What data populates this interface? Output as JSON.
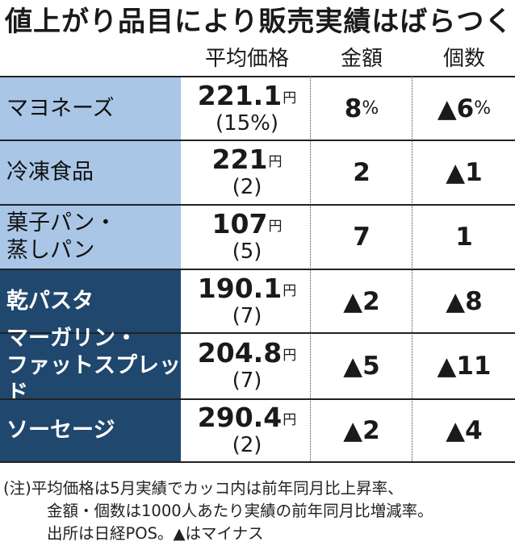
{
  "title": "値上がり品目により販売実績はばらつく",
  "headers": {
    "price": "平均価格",
    "amount": "金額",
    "count": "個数"
  },
  "rows": [
    {
      "name_lines": [
        "マヨネーズ"
      ],
      "price": "221.1",
      "unit": "円",
      "price_change": "(15%)",
      "amount": "8",
      "amount_unit": "%",
      "count": "▲6",
      "count_unit": "%",
      "style": "light"
    },
    {
      "name_lines": [
        "冷凍食品"
      ],
      "price": "221",
      "unit": "円",
      "price_change": "(2)",
      "amount": "2",
      "amount_unit": "",
      "count": "▲1",
      "count_unit": "",
      "style": "light"
    },
    {
      "name_lines": [
        "菓子パン・",
        "蒸しパン"
      ],
      "price": "107",
      "unit": "円",
      "price_change": "(5)",
      "amount": "7",
      "amount_unit": "",
      "count": "1",
      "count_unit": "",
      "style": "light"
    },
    {
      "name_lines": [
        "乾パスタ"
      ],
      "price": "190.1",
      "unit": "円",
      "price_change": "(7)",
      "amount": "▲2",
      "amount_unit": "",
      "count": "▲8",
      "count_unit": "",
      "style": "dark"
    },
    {
      "name_lines": [
        "マーガリン・",
        "ファットスプレッド"
      ],
      "price": "204.8",
      "unit": "円",
      "price_change": "(7)",
      "amount": "▲5",
      "amount_unit": "",
      "count": "▲11",
      "count_unit": "",
      "style": "dark"
    },
    {
      "name_lines": [
        "ソーセージ"
      ],
      "price": "290.4",
      "unit": "円",
      "price_change": "(2)",
      "amount": "▲2",
      "amount_unit": "",
      "count": "▲4",
      "count_unit": "",
      "style": "dark"
    }
  ],
  "notes": [
    "(注)平均価格は5月実績でカッコ内は前年同月比上昇率、",
    "金額・個数は1000人あたり実績の前年同月比増減率。",
    "出所は日経POS。▲はマイナス"
  ],
  "colors": {
    "light_fill": "#a9c6e6",
    "dark_fill": "#20476e"
  }
}
